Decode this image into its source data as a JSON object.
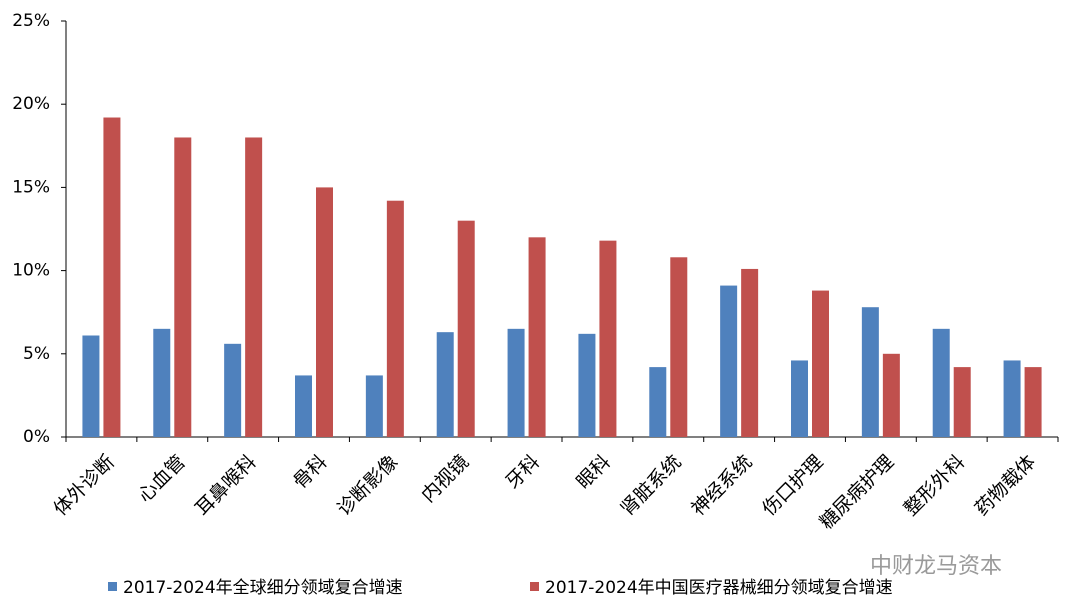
{
  "chart_data": {
    "type": "bar",
    "categories": [
      "体外诊断",
      "心血管",
      "耳鼻喉科",
      "骨科",
      "诊断影像",
      "内视镜",
      "牙科",
      "眼科",
      "肾脏系统",
      "神经系统",
      "伤口护理",
      "糖尿病护理",
      "整形外科",
      "药物载体"
    ],
    "series": [
      {
        "name": "2017-2024年全球细分领域复合增速",
        "color": "#4f81bd",
        "values": [
          6.1,
          6.5,
          5.6,
          3.7,
          3.7,
          6.3,
          6.5,
          6.2,
          4.2,
          9.1,
          4.6,
          7.8,
          6.5,
          4.6
        ]
      },
      {
        "name": "2017-2024年中国医疗器械细分领域复合增速",
        "color": "#c0504d",
        "values": [
          19.2,
          18.0,
          18.0,
          15.0,
          14.2,
          13.0,
          12.0,
          11.8,
          10.8,
          10.1,
          8.8,
          5.0,
          4.2,
          4.2
        ]
      }
    ],
    "ylim": [
      0,
      25
    ],
    "yticks": [
      {
        "value": 0,
        "label": "0%"
      },
      {
        "value": 5,
        "label": "5%"
      },
      {
        "value": 10,
        "label": "10%"
      },
      {
        "value": 15,
        "label": "15%"
      },
      {
        "value": 20,
        "label": "20%"
      },
      {
        "value": 25,
        "label": "25%"
      }
    ],
    "grid": false,
    "legend": "bottom",
    "watermark": "中财龙马资本"
  }
}
